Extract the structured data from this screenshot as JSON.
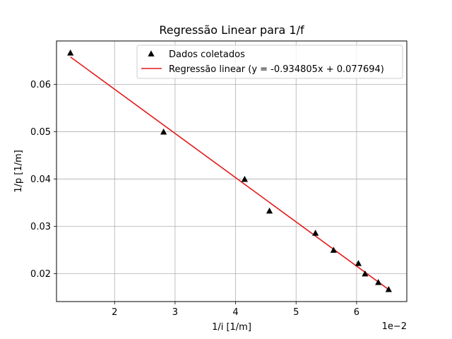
{
  "chart_data": {
    "type": "scatter",
    "title": "Regressão Linear para 1/f",
    "xlabel": "1/i [1/m]",
    "ylabel": "1/p [1/m]",
    "x_offset_label": "1e−2",
    "x_scale": 0.01,
    "xlim": [
      0.0104,
      0.0683
    ],
    "ylim": [
      0.0141,
      0.0692
    ],
    "x_ticks": [
      {
        "value": 0.02,
        "label": "2"
      },
      {
        "value": 0.03,
        "label": "3"
      },
      {
        "value": 0.04,
        "label": "4"
      },
      {
        "value": 0.05,
        "label": "5"
      },
      {
        "value": 0.06,
        "label": "6"
      }
    ],
    "y_ticks": [
      {
        "value": 0.02,
        "label": "0.02"
      },
      {
        "value": 0.03,
        "label": "0.03"
      },
      {
        "value": 0.04,
        "label": "0.04"
      },
      {
        "value": 0.05,
        "label": "0.05"
      },
      {
        "value": 0.06,
        "label": "0.06"
      }
    ],
    "grid": true,
    "legend_position": "top-right",
    "series": [
      {
        "name": "Dados coletados",
        "kind": "scatter",
        "marker": "triangle-up",
        "color": "#000000",
        "x": [
          0.0127,
          0.0281,
          0.0415,
          0.0456,
          0.0532,
          0.0562,
          0.0603,
          0.0614,
          0.0636,
          0.0653
        ],
        "y": [
          0.0667,
          0.05,
          0.04,
          0.0333,
          0.0286,
          0.025,
          0.0222,
          0.02,
          0.0182,
          0.0167
        ]
      },
      {
        "name": "Regressão linear (y = -0.934805x + 0.077694)",
        "kind": "line",
        "color": "#e31a1c",
        "x": [
          0.0127,
          0.0653
        ],
        "y": [
          0.06582,
          0.01665
        ]
      }
    ]
  }
}
